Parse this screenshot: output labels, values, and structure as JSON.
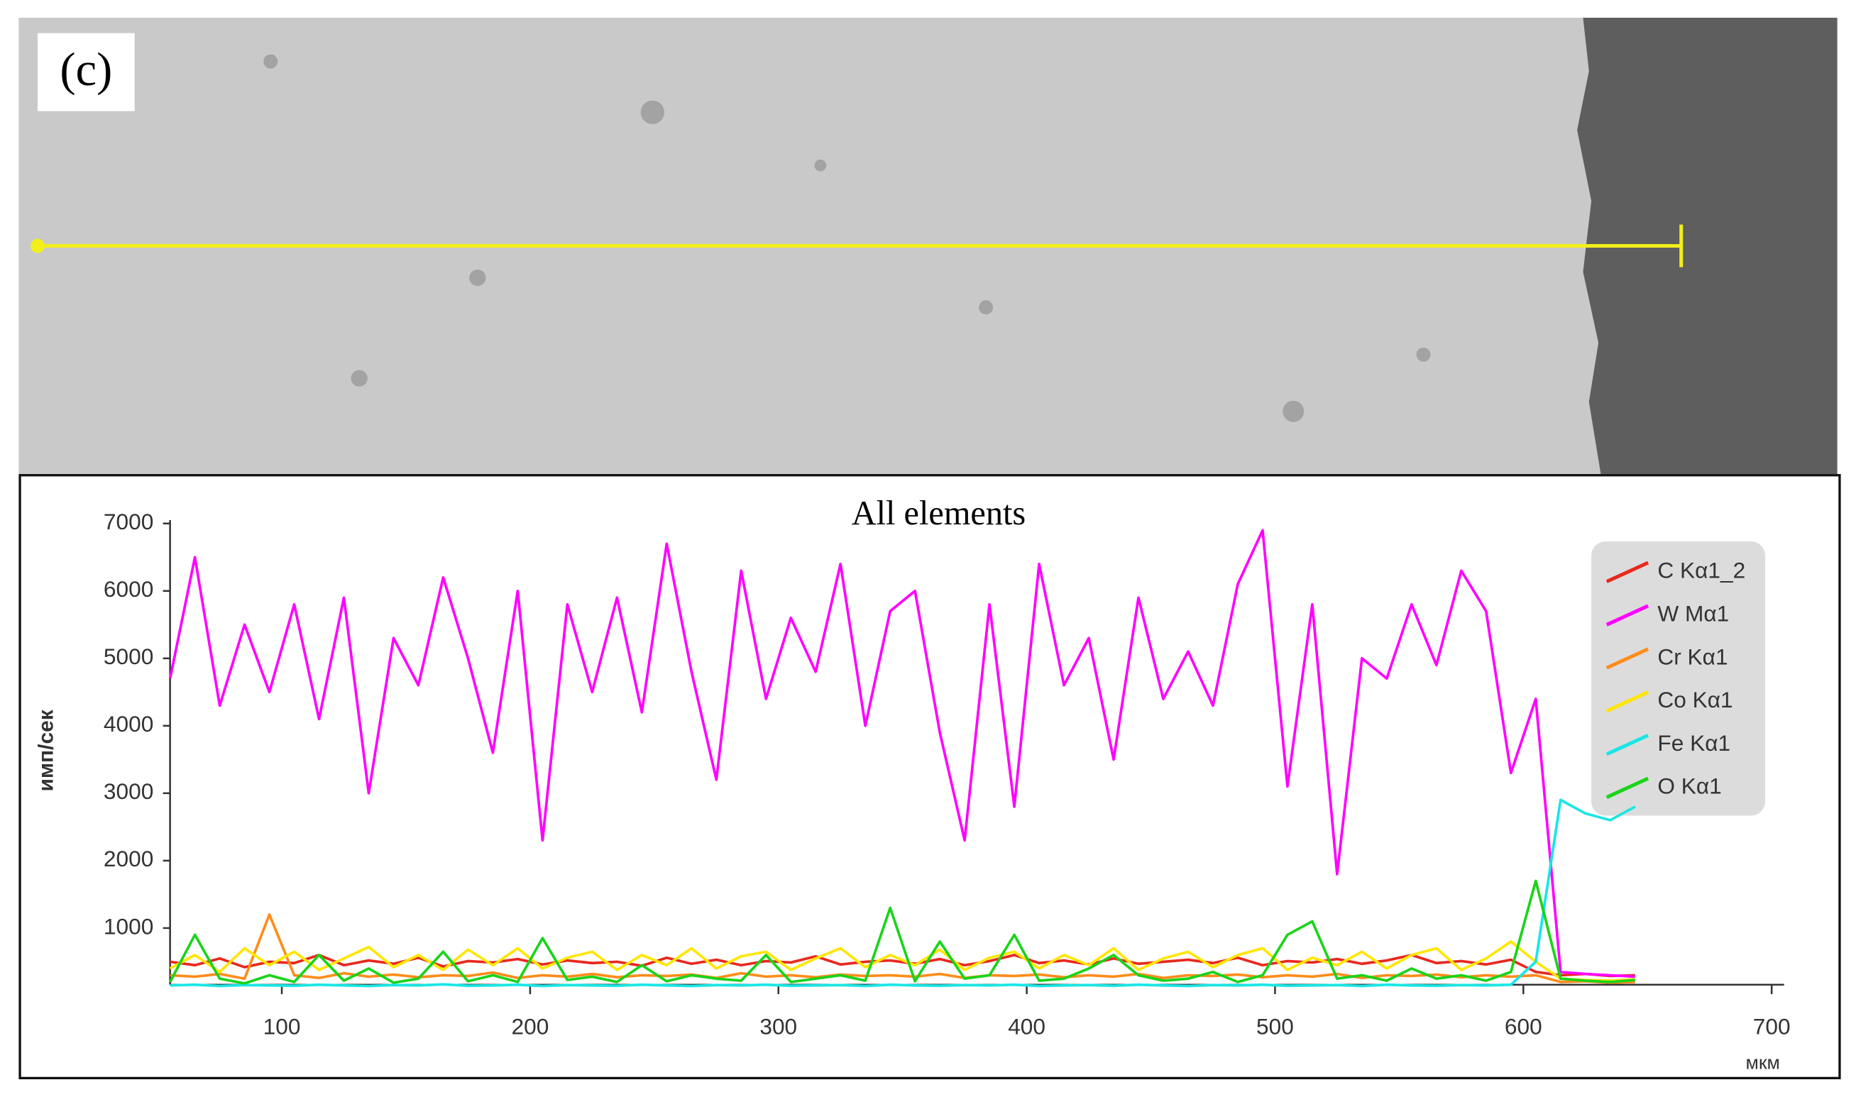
{
  "panel_label": "(c)",
  "chart_data": {
    "type": "line",
    "title": "All elements",
    "y_label": "имп/сек",
    "x_label": "мкм",
    "xlim": [
      55,
      705
    ],
    "xticks": [
      100,
      200,
      300,
      400,
      500,
      600,
      700
    ],
    "ylim": [
      160,
      7050
    ],
    "yticks": [
      1000,
      2000,
      3000,
      4000,
      5000,
      6000,
      7000
    ],
    "legend": "upper right",
    "x": [
      55,
      65,
      75,
      85,
      95,
      105,
      115,
      125,
      135,
      145,
      155,
      165,
      175,
      185,
      195,
      205,
      215,
      225,
      235,
      245,
      255,
      265,
      275,
      285,
      295,
      305,
      315,
      325,
      335,
      345,
      355,
      365,
      375,
      385,
      395,
      405,
      415,
      425,
      435,
      445,
      455,
      465,
      475,
      485,
      495,
      505,
      515,
      525,
      535,
      545,
      555,
      565,
      575,
      585,
      595,
      605,
      615,
      625,
      635,
      645
    ],
    "series": [
      {
        "name": "C Kα1_2",
        "color": "#e8281e",
        "values": [
          500,
          450,
          550,
          420,
          500,
          480,
          600,
          450,
          520,
          470,
          560,
          430,
          510,
          490,
          540,
          460,
          520,
          480,
          500,
          440,
          560,
          470,
          530,
          450,
          510,
          490,
          580,
          460,
          500,
          520,
          470,
          540,
          450,
          510,
          600,
          480,
          520,
          460,
          550,
          470,
          500,
          530,
          480,
          560,
          450,
          510,
          490,
          540,
          470,
          520,
          600,
          480,
          510,
          460,
          530,
          350,
          300,
          320,
          290,
          300
        ]
      },
      {
        "name": "W Mα1",
        "color": "#ff00ff",
        "values": [
          4700,
          6500,
          4300,
          5500,
          4500,
          5800,
          4100,
          5900,
          3000,
          5300,
          4600,
          6200,
          5000,
          3600,
          6000,
          2300,
          5800,
          4500,
          5900,
          4200,
          6700,
          4800,
          3200,
          6300,
          4400,
          5600,
          4800,
          6400,
          4000,
          5700,
          6000,
          3900,
          2300,
          5800,
          2800,
          6400,
          4600,
          5300,
          3500,
          5900,
          4400,
          5100,
          4300,
          6100,
          6900,
          3100,
          5800,
          1800,
          5000,
          4700,
          5800,
          4900,
          6300,
          5700,
          3300,
          4400,
          350,
          320,
          300,
          280
        ]
      },
      {
        "name": "Cr Kα1",
        "color": "#ff8c1a",
        "values": [
          300,
          280,
          320,
          250,
          1200,
          300,
          260,
          330,
          280,
          310,
          270,
          300,
          290,
          340,
          260,
          300,
          280,
          320,
          270,
          300,
          290,
          310,
          260,
          330,
          280,
          300,
          270,
          310,
          290,
          300,
          280,
          320,
          260,
          300,
          290,
          310,
          270,
          300,
          280,
          320,
          260,
          300,
          290,
          310,
          270,
          300,
          280,
          320,
          260,
          300,
          290,
          310,
          270,
          300,
          280,
          300,
          200,
          210,
          190,
          200
        ]
      },
      {
        "name": "Co Kα1",
        "color": "#ffe600",
        "values": [
          400,
          600,
          350,
          700,
          450,
          650,
          380,
          550,
          720,
          420,
          600,
          380,
          680,
          450,
          700,
          400,
          560,
          650,
          380,
          600,
          450,
          700,
          400,
          580,
          650,
          380,
          550,
          700,
          420,
          600,
          450,
          680,
          380,
          560,
          650,
          400,
          600,
          450,
          700,
          380,
          550,
          650,
          420,
          600,
          700,
          380,
          560,
          450,
          650,
          400,
          600,
          700,
          380,
          550,
          800,
          500,
          250,
          230,
          220,
          240
        ]
      },
      {
        "name": "Fe Kα1",
        "color": "#19e6e6",
        "values": [
          150,
          160,
          140,
          155,
          150,
          145,
          160,
          150,
          140,
          155,
          150,
          165,
          145,
          150,
          160,
          140,
          155,
          150,
          145,
          160,
          150,
          140,
          155,
          150,
          160,
          145,
          150,
          155,
          140,
          160,
          150,
          145,
          155,
          150,
          160,
          140,
          150,
          155,
          145,
          160,
          150,
          140,
          155,
          150,
          160,
          145,
          150,
          155,
          140,
          160,
          150,
          145,
          155,
          150,
          160,
          500,
          2900,
          2700,
          2600,
          2800
        ]
      },
      {
        "name": "O Kα1",
        "color": "#19d419",
        "values": [
          200,
          900,
          250,
          180,
          300,
          200,
          600,
          220,
          400,
          190,
          250,
          650,
          210,
          300,
          200,
          850,
          230,
          280,
          200,
          450,
          210,
          300,
          250,
          220,
          600,
          200,
          250,
          300,
          220,
          1300,
          210,
          800,
          250,
          300,
          900,
          220,
          250,
          400,
          600,
          300,
          220,
          250,
          350,
          200,
          300,
          900,
          1100,
          250,
          300,
          220,
          400,
          250,
          300,
          220,
          350,
          1700,
          250,
          220,
          200,
          230
        ]
      }
    ]
  }
}
